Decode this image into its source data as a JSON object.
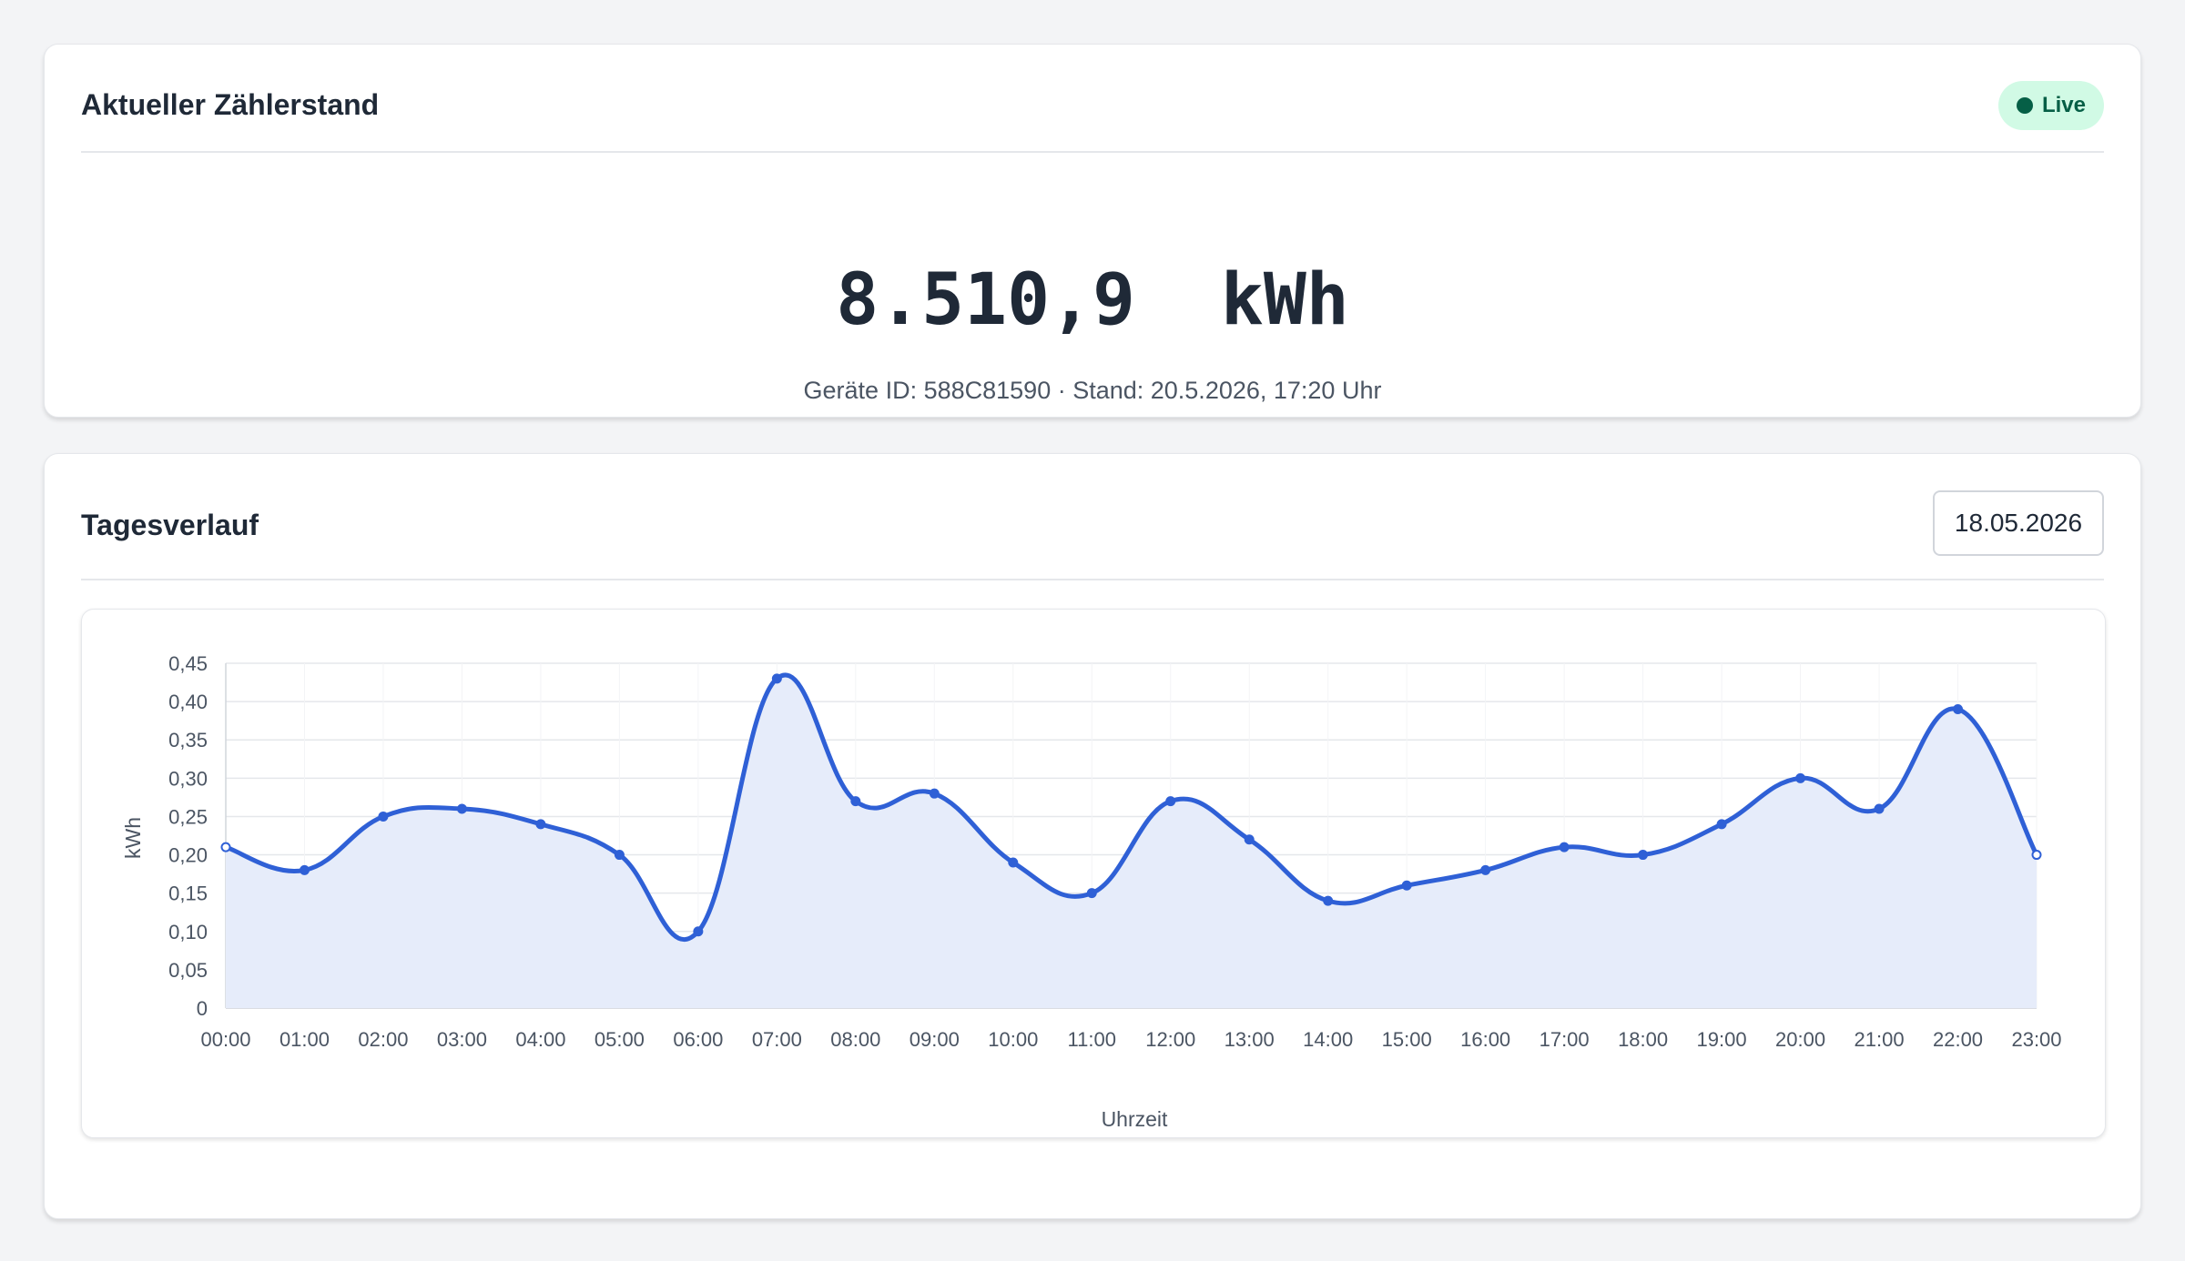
{
  "meter_card": {
    "title": "Aktueller Zählerstand",
    "live_label": "Live",
    "reading": "8.510,9  kWh",
    "device_line": "Geräte ID: 588C81590 · Stand: 20.5.2026, 17:20 Uhr"
  },
  "daily_card": {
    "title": "Tagesverlauf",
    "date_value": "18.05.2026"
  },
  "colors": {
    "line": "#2f60d6",
    "fill": "#e6ecfa",
    "live_bg": "#d1fae5",
    "live_text": "#065f46"
  },
  "chart_data": {
    "type": "area",
    "xlabel": "Uhrzeit",
    "ylabel": "kWh",
    "ylim": [
      0,
      0.45
    ],
    "yticks": [
      "0",
      "0,05",
      "0,10",
      "0,15",
      "0,20",
      "0,25",
      "0,30",
      "0,35",
      "0,40",
      "0,45"
    ],
    "grid": true,
    "x": [
      "00:00",
      "01:00",
      "02:00",
      "03:00",
      "04:00",
      "05:00",
      "06:00",
      "07:00",
      "08:00",
      "09:00",
      "10:00",
      "11:00",
      "12:00",
      "13:00",
      "14:00",
      "15:00",
      "16:00",
      "17:00",
      "18:00",
      "19:00",
      "20:00",
      "21:00",
      "22:00",
      "23:00"
    ],
    "values": [
      0.21,
      0.18,
      0.25,
      0.26,
      0.24,
      0.2,
      0.1,
      0.43,
      0.27,
      0.28,
      0.19,
      0.15,
      0.27,
      0.22,
      0.14,
      0.16,
      0.18,
      0.21,
      0.2,
      0.24,
      0.3,
      0.26,
      0.39,
      0.2
    ]
  }
}
